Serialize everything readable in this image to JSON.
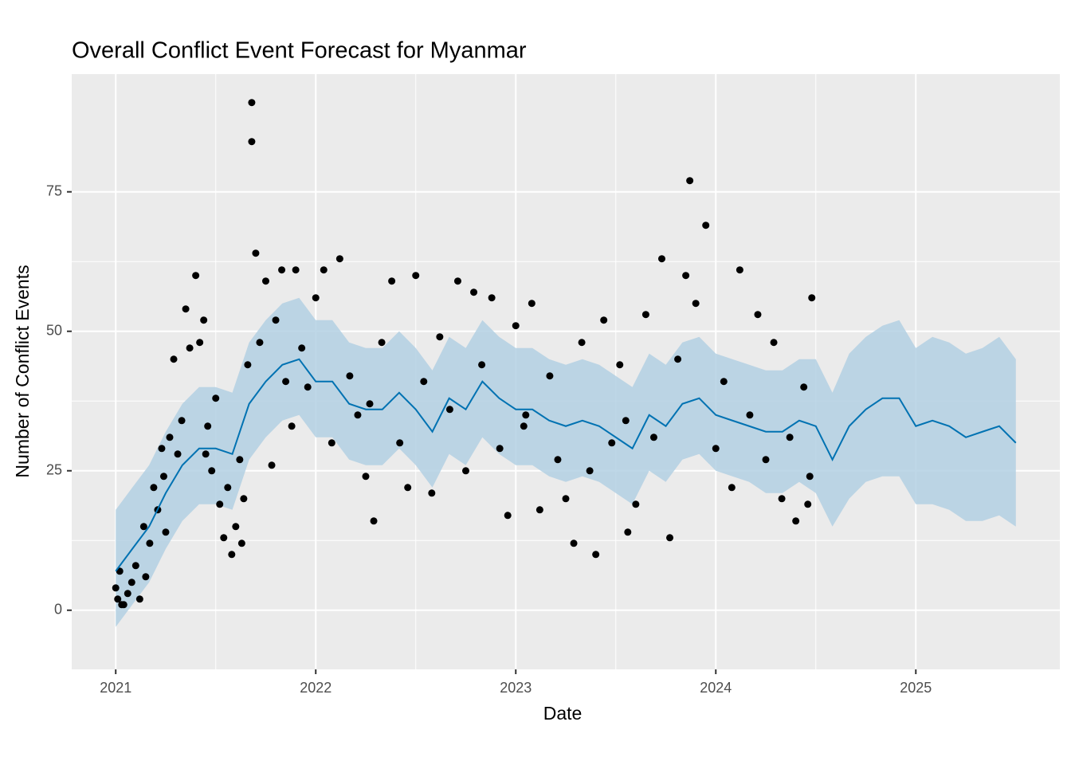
{
  "chart_data": {
    "type": "forecast",
    "title": "Overall Conflict Event Forecast for Myanmar",
    "x_label": "Date",
    "y_label": "Number of Conflict Events",
    "xlim": [
      2020.78,
      2025.72
    ],
    "ylim": [
      -10.6,
      96.1
    ],
    "xticks": [
      2021,
      2022,
      2023,
      2024,
      2025
    ],
    "yticks": [
      0,
      25,
      50,
      75
    ],
    "grid": true,
    "point_color": "#000000",
    "line_color": "#0072B2",
    "band_color": "#b3d0e3",
    "observed": {
      "x": [
        2021.0,
        2021.01,
        2021.02,
        2021.04,
        2021.06,
        2021.08,
        2021.1,
        2021.12,
        2021.14,
        2021.17,
        2021.19,
        2021.21,
        2021.23,
        2021.25,
        2021.27,
        2021.29,
        2021.31,
        2021.33,
        2021.35,
        2021.37,
        2021.4,
        2021.42,
        2021.44,
        2021.46,
        2021.48,
        2021.5,
        2021.52,
        2021.54,
        2021.56,
        2021.58,
        2021.6,
        2021.62,
        2021.64,
        2021.66,
        2021.68,
        2021.68,
        2021.7,
        2021.72,
        2021.75,
        2021.78,
        2021.8,
        2021.83,
        2021.85,
        2021.88,
        2021.9,
        2021.93,
        2021.96,
        2022.0,
        2022.04,
        2022.08,
        2022.12,
        2022.17,
        2022.21,
        2022.25,
        2022.29,
        2022.33,
        2022.38,
        2022.42,
        2022.46,
        2022.5,
        2022.54,
        2022.58,
        2022.62,
        2022.67,
        2022.71,
        2022.75,
        2022.79,
        2022.83,
        2022.88,
        2022.92,
        2022.96,
        2023.0,
        2023.04,
        2023.08,
        2023.12,
        2023.17,
        2023.21,
        2023.25,
        2023.29,
        2023.33,
        2023.37,
        2023.4,
        2023.44,
        2023.48,
        2023.52,
        2023.56,
        2023.6,
        2023.65,
        2023.69,
        2023.73,
        2023.77,
        2023.81,
        2023.85,
        2023.87,
        2023.9,
        2023.95,
        2024.0,
        2024.04,
        2024.08,
        2024.12,
        2024.17,
        2024.21,
        2024.25,
        2024.29,
        2024.33,
        2024.37,
        2024.4,
        2024.44,
        2024.48,
        2021.03,
        2021.15,
        2021.24,
        2021.45,
        2021.63,
        2022.27,
        2023.05,
        2023.55,
        2024.46,
        2024.47
      ],
      "y": [
        4,
        2,
        7,
        1,
        3,
        5,
        8,
        2,
        15,
        12,
        22,
        18,
        29,
        14,
        31,
        45,
        28,
        34,
        54,
        47,
        60,
        48,
        52,
        33,
        25,
        38,
        19,
        13,
        22,
        10,
        15,
        27,
        20,
        44,
        91,
        84,
        64,
        48,
        59,
        26,
        52,
        61,
        41,
        33,
        61,
        47,
        40,
        56,
        61,
        30,
        63,
        42,
        35,
        24,
        16,
        48,
        59,
        30,
        22,
        60,
        41,
        21,
        49,
        36,
        59,
        25,
        57,
        44,
        56,
        29,
        17,
        51,
        33,
        55,
        18,
        42,
        27,
        20,
        12,
        48,
        25,
        10,
        52,
        30,
        44,
        14,
        19,
        53,
        31,
        63,
        13,
        45,
        60,
        77,
        55,
        69,
        29,
        41,
        22,
        61,
        35,
        53,
        27,
        48,
        20,
        31,
        16,
        40,
        56,
        1,
        6,
        24,
        28,
        12,
        37,
        35,
        34,
        19,
        24
      ]
    },
    "forecast": {
      "x": [
        2021.0,
        2021.083,
        2021.167,
        2021.25,
        2021.333,
        2021.417,
        2021.5,
        2021.583,
        2021.667,
        2021.75,
        2021.833,
        2021.917,
        2022.0,
        2022.083,
        2022.167,
        2022.25,
        2022.333,
        2022.417,
        2022.5,
        2022.583,
        2022.667,
        2022.75,
        2022.833,
        2022.917,
        2023.0,
        2023.083,
        2023.167,
        2023.25,
        2023.333,
        2023.417,
        2023.5,
        2023.583,
        2023.667,
        2023.75,
        2023.833,
        2023.917,
        2024.0,
        2024.083,
        2024.167,
        2024.25,
        2024.333,
        2024.417,
        2024.5,
        2024.583,
        2024.667,
        2024.75,
        2024.833,
        2024.917,
        2025.0,
        2025.083,
        2025.167,
        2025.25,
        2025.333,
        2025.417,
        2025.5
      ],
      "yhat": [
        7,
        11,
        15,
        21,
        26,
        29,
        29,
        28,
        37,
        41,
        44,
        45,
        41,
        41,
        37,
        36,
        36,
        39,
        36,
        32,
        38,
        36,
        41,
        38,
        36,
        36,
        34,
        33,
        34,
        33,
        31,
        29,
        35,
        33,
        37,
        38,
        35,
        34,
        33,
        32,
        32,
        34,
        33,
        27,
        33,
        36,
        38,
        38,
        33,
        34,
        33,
        31,
        32,
        33,
        30
      ],
      "lower": [
        -3,
        1,
        5,
        11,
        16,
        19,
        19,
        18,
        27,
        31,
        34,
        35,
        31,
        31,
        27,
        26,
        26,
        29,
        26,
        22,
        28,
        26,
        31,
        28,
        26,
        26,
        24,
        23,
        24,
        23,
        21,
        19,
        25,
        23,
        27,
        28,
        25,
        24,
        23,
        21,
        21,
        23,
        21,
        15,
        20,
        23,
        24,
        24,
        19,
        19,
        18,
        16,
        16,
        17,
        15
      ],
      "upper": [
        18,
        22,
        26,
        32,
        37,
        40,
        40,
        39,
        48,
        52,
        55,
        56,
        52,
        52,
        48,
        47,
        47,
        50,
        47,
        43,
        49,
        47,
        52,
        49,
        47,
        47,
        45,
        44,
        45,
        44,
        42,
        40,
        46,
        44,
        48,
        49,
        46,
        45,
        44,
        43,
        43,
        45,
        45,
        39,
        46,
        49,
        51,
        52,
        47,
        49,
        48,
        46,
        47,
        49,
        45
      ]
    }
  }
}
